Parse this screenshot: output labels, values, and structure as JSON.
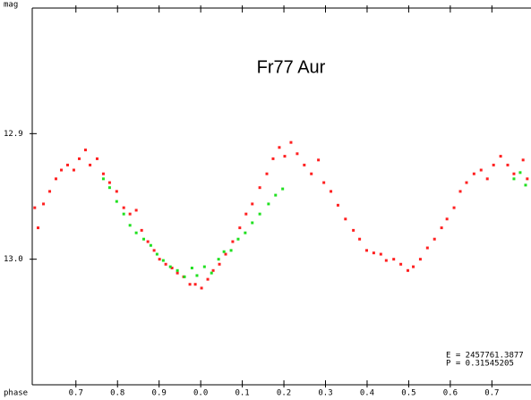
{
  "chart_data": {
    "type": "scatter",
    "title": "Fr77 Aur",
    "xlabel": "phase",
    "ylabel": "mag",
    "annotations": [
      "E = 2457761.3877",
      "P = 0.31545205"
    ],
    "xlim": [
      -0.405,
      0.794
    ],
    "xticks": [
      {
        "value": -0.3,
        "label": "0.7"
      },
      {
        "value": -0.2,
        "label": "0.8"
      },
      {
        "value": -0.1,
        "label": "0.9"
      },
      {
        "value": 0,
        "label": "0.0"
      },
      0.1,
      0.2,
      0.3,
      0.4,
      0.5,
      0.6,
      0.7
    ],
    "ylim": [
      12.8,
      13.1
    ],
    "y_inverted": true,
    "yticks": [
      12.9,
      {
        "value": 13.0,
        "label": "13.0"
      }
    ],
    "series": [
      {
        "color": "#ff2020",
        "x": [
          -0.399,
          -0.391,
          -0.378,
          -0.363,
          -0.348,
          -0.335,
          -0.32,
          -0.305,
          -0.292,
          -0.277,
          -0.266,
          -0.249,
          -0.234,
          -0.219,
          -0.202,
          -0.185,
          -0.17,
          -0.155,
          -0.142,
          -0.127,
          -0.112,
          -0.099,
          -0.084,
          -0.069,
          -0.056,
          -0.041,
          -0.026,
          -0.013,
          0.002,
          0.017,
          0.03,
          0.045,
          0.06,
          0.077,
          0.094,
          0.109,
          0.124,
          0.142,
          0.159,
          0.174,
          0.189,
          0.202,
          0.217,
          0.232,
          0.249,
          0.266,
          0.283,
          0.296,
          0.313,
          0.33,
          0.348,
          0.367,
          0.382,
          0.399,
          0.416,
          0.433,
          0.446,
          0.464,
          0.481,
          0.498,
          0.511,
          0.528,
          0.545,
          0.562,
          0.579,
          0.592,
          0.609,
          0.624,
          0.639,
          0.657,
          0.674,
          0.689,
          0.704,
          0.721,
          0.738,
          0.753,
          0.775,
          0.785
        ],
        "values": [
          12.959,
          12.975,
          12.956,
          12.946,
          12.936,
          12.929,
          12.925,
          12.929,
          12.92,
          12.913,
          12.925,
          12.92,
          12.932,
          12.939,
          12.946,
          12.959,
          12.964,
          12.961,
          12.977,
          12.986,
          12.993,
          13.0,
          13.004,
          13.007,
          13.011,
          13.014,
          13.02,
          13.02,
          13.023,
          13.016,
          13.009,
          13.004,
          12.996,
          12.986,
          12.975,
          12.964,
          12.956,
          12.943,
          12.932,
          12.92,
          12.911,
          12.918,
          12.907,
          12.916,
          12.925,
          12.932,
          12.921,
          12.939,
          12.946,
          12.957,
          12.968,
          12.977,
          12.984,
          12.993,
          12.995,
          12.996,
          13.001,
          13.0,
          13.004,
          13.009,
          13.006,
          13.0,
          12.991,
          12.984,
          12.975,
          12.968,
          12.959,
          12.946,
          12.939,
          12.932,
          12.929,
          12.936,
          12.925,
          12.918,
          12.925,
          12.932,
          12.921,
          12.936
        ]
      },
      {
        "color": "#20e020",
        "x": [
          -0.234,
          -0.219,
          -0.202,
          -0.185,
          -0.17,
          -0.155,
          -0.137,
          -0.12,
          -0.105,
          -0.09,
          -0.073,
          -0.056,
          -0.039,
          -0.021,
          -0.009,
          0.009,
          0.026,
          0.043,
          0.056,
          0.073,
          0.09,
          0.107,
          0.124,
          0.142,
          0.163,
          0.18,
          0.197,
          0.753,
          0.768,
          0.781
        ],
        "values": [
          12.936,
          12.943,
          12.954,
          12.964,
          12.973,
          12.979,
          12.984,
          12.989,
          12.996,
          13.001,
          13.006,
          13.009,
          13.014,
          13.007,
          13.013,
          13.006,
          13.011,
          13.0,
          12.994,
          12.993,
          12.984,
          12.979,
          12.971,
          12.964,
          12.956,
          12.949,
          12.944,
          12.936,
          12.931,
          12.941
        ]
      }
    ]
  }
}
